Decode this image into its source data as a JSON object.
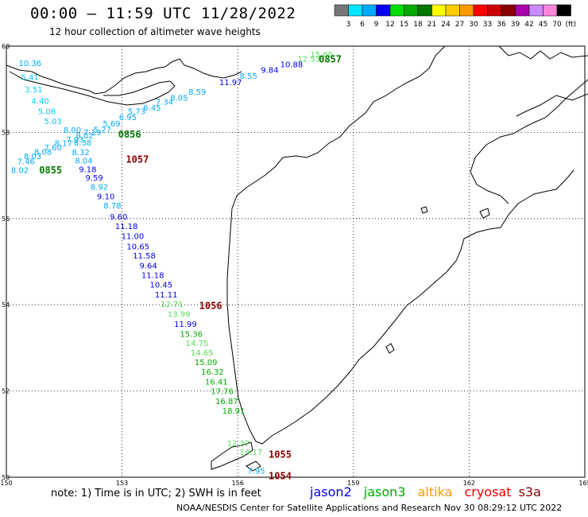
{
  "title": "00:00 – 11:59 UTC 11/28/2022",
  "subtitle": "12 hour collection of altimeter wave heights",
  "colorbar": {
    "colors": [
      "#777777",
      "#00e5ff",
      "#00aaff",
      "#0000ee",
      "#00dd00",
      "#00aa00",
      "#007700",
      "#ffff00",
      "#ffcc00",
      "#ff9900",
      "#ff0000",
      "#cc0000",
      "#880000",
      "#aa00aa",
      "#cc88ff",
      "#ff88dd",
      "#000000"
    ],
    "labels": [
      "3",
      "6",
      "9",
      "12",
      "15",
      "18",
      "21",
      "24",
      "27",
      "30",
      "33",
      "36",
      "39",
      "42",
      "45",
      "70"
    ],
    "unit": "(ft)"
  },
  "map": {
    "lon_range": [
      150,
      165
    ],
    "lat_range": [
      50,
      60
    ],
    "lon_ticks": [
      "150",
      "153",
      "156",
      "159",
      "162",
      "165"
    ],
    "lat_ticks": [
      "50",
      "52",
      "54",
      "56",
      "58",
      "60"
    ],
    "grid": "dotted"
  },
  "passes": [
    {
      "time": "0857",
      "color": "#007700",
      "lon": 158.1,
      "lat": 59.62
    },
    {
      "time": "0856",
      "color": "#007700",
      "lon": 152.9,
      "lat": 57.88
    },
    {
      "time": "0855",
      "color": "#007700",
      "lon": 150.85,
      "lat": 57.05
    },
    {
      "time": "1057",
      "color": "#880000",
      "lon": 153.1,
      "lat": 57.3
    },
    {
      "time": "1056",
      "color": "#880000",
      "lon": 155.0,
      "lat": 53.9
    },
    {
      "time": "1055",
      "color": "#880000",
      "lon": 156.8,
      "lat": 50.45
    },
    {
      "time": "1054",
      "color": "#880000",
      "lon": 156.8,
      "lat": 49.95
    }
  ],
  "heights": [
    {
      "value": "15.60",
      "color": "#55dd55",
      "lon": 157.88,
      "lat": 59.74
    },
    {
      "value": "12.53",
      "color": "#55dd55",
      "lon": 157.55,
      "lat": 59.64
    },
    {
      "value": "10.88",
      "color": "#0000ee",
      "lon": 157.1,
      "lat": 59.51
    },
    {
      "value": "9.84",
      "color": "#0000ee",
      "lon": 156.6,
      "lat": 59.38
    },
    {
      "value": "8.55",
      "color": "#00aaff",
      "lon": 156.05,
      "lat": 59.24
    },
    {
      "value": "11.97",
      "color": "#0000ee",
      "lon": 155.52,
      "lat": 59.1
    },
    {
      "value": "8.59",
      "color": "#00aaff",
      "lon": 154.72,
      "lat": 58.87
    },
    {
      "value": "8.05",
      "color": "#00aaff",
      "lon": 154.25,
      "lat": 58.74
    },
    {
      "value": "7.34",
      "color": "#00aaff",
      "lon": 153.87,
      "lat": 58.64
    },
    {
      "value": "6.45",
      "color": "#00aaff",
      "lon": 153.55,
      "lat": 58.51
    },
    {
      "value": "5.73",
      "color": "#00aaff",
      "lon": 153.15,
      "lat": 58.42
    },
    {
      "value": "6.95",
      "color": "#00aaff",
      "lon": 152.92,
      "lat": 58.28
    },
    {
      "value": "5.69",
      "color": "#00aaff",
      "lon": 152.5,
      "lat": 58.14
    },
    {
      "value": "5.27",
      "color": "#00aaff",
      "lon": 152.26,
      "lat": 58.0
    },
    {
      "value": "7.19",
      "color": "#00aaff",
      "lon": 152.0,
      "lat": 57.93
    },
    {
      "value": "8.00",
      "color": "#00aaff",
      "lon": 151.48,
      "lat": 57.99
    },
    {
      "value": "8.02",
      "color": "#00aaff",
      "lon": 151.8,
      "lat": 57.86
    },
    {
      "value": "7.93",
      "color": "#00aaff",
      "lon": 151.55,
      "lat": 57.77
    },
    {
      "value": "8.38",
      "color": "#00aaff",
      "lon": 151.75,
      "lat": 57.69
    },
    {
      "value": "8.17",
      "color": "#00aaff",
      "lon": 151.25,
      "lat": 57.68
    },
    {
      "value": "7.60",
      "color": "#00aaff",
      "lon": 150.98,
      "lat": 57.58
    },
    {
      "value": "8.32",
      "color": "#00aaff",
      "lon": 151.7,
      "lat": 57.47
    },
    {
      "value": "8.08",
      "color": "#00aaff",
      "lon": 150.72,
      "lat": 57.48
    },
    {
      "value": "8.03",
      "color": "#00aaff",
      "lon": 150.45,
      "lat": 57.38
    },
    {
      "value": "8.04",
      "color": "#00aaff",
      "lon": 151.78,
      "lat": 57.28
    },
    {
      "value": "7.46",
      "color": "#00aaff",
      "lon": 150.28,
      "lat": 57.26
    },
    {
      "value": "8.02",
      "color": "#00aaff",
      "lon": 150.12,
      "lat": 57.06
    },
    {
      "value": "9.18",
      "color": "#0000ee",
      "lon": 151.88,
      "lat": 57.08
    },
    {
      "value": "9.59",
      "color": "#0000ee",
      "lon": 152.05,
      "lat": 56.88
    },
    {
      "value": "8.92",
      "color": "#00aaff",
      "lon": 152.18,
      "lat": 56.67
    },
    {
      "value": "9.10",
      "color": "#0000ee",
      "lon": 152.35,
      "lat": 56.45
    },
    {
      "value": "8.78",
      "color": "#00aaff",
      "lon": 152.52,
      "lat": 56.24
    },
    {
      "value": "9.60",
      "color": "#0000ee",
      "lon": 152.68,
      "lat": 55.98
    },
    {
      "value": "11.18",
      "color": "#0000ee",
      "lon": 152.82,
      "lat": 55.76
    },
    {
      "value": "11.00",
      "color": "#0000ee",
      "lon": 152.98,
      "lat": 55.53
    },
    {
      "value": "10.65",
      "color": "#0000ee",
      "lon": 153.12,
      "lat": 55.29
    },
    {
      "value": "11.58",
      "color": "#0000ee",
      "lon": 153.28,
      "lat": 55.07
    },
    {
      "value": "9.64",
      "color": "#0000ee",
      "lon": 153.45,
      "lat": 54.84
    },
    {
      "value": "11.18",
      "color": "#0000ee",
      "lon": 153.5,
      "lat": 54.62
    },
    {
      "value": "10.45",
      "color": "#0000ee",
      "lon": 153.72,
      "lat": 54.4
    },
    {
      "value": "11.11",
      "color": "#0000ee",
      "lon": 153.85,
      "lat": 54.17
    },
    {
      "value": "12.71",
      "color": "#55dd55",
      "lon": 154.0,
      "lat": 53.95
    },
    {
      "value": "13.99",
      "color": "#55dd55",
      "lon": 154.18,
      "lat": 53.72
    },
    {
      "value": "11.99",
      "color": "#0000ee",
      "lon": 154.35,
      "lat": 53.49
    },
    {
      "value": "15.36",
      "color": "#00aa00",
      "lon": 154.5,
      "lat": 53.26
    },
    {
      "value": "14.75",
      "color": "#55dd55",
      "lon": 154.65,
      "lat": 53.04
    },
    {
      "value": "14.65",
      "color": "#55dd55",
      "lon": 154.78,
      "lat": 52.82
    },
    {
      "value": "15.09",
      "color": "#00aa00",
      "lon": 154.88,
      "lat": 52.6
    },
    {
      "value": "16.32",
      "color": "#00aa00",
      "lon": 155.05,
      "lat": 52.38
    },
    {
      "value": "16.41",
      "color": "#00aa00",
      "lon": 155.15,
      "lat": 52.15
    },
    {
      "value": "17.76",
      "color": "#00aa00",
      "lon": 155.3,
      "lat": 51.93
    },
    {
      "value": "16.87",
      "color": "#00aa00",
      "lon": 155.42,
      "lat": 51.7
    },
    {
      "value": "18.91",
      "color": "#00aa00",
      "lon": 155.6,
      "lat": 51.48
    },
    {
      "value": "12.37",
      "color": "#55dd55",
      "lon": 155.72,
      "lat": 50.72
    },
    {
      "value": "14.17",
      "color": "#55dd55",
      "lon": 156.05,
      "lat": 50.52
    },
    {
      "value": "10.36",
      "color": "#00aaff",
      "lon": 150.32,
      "lat": 59.54
    },
    {
      "value": "5.41",
      "color": "#00ccff",
      "lon": 150.38,
      "lat": 59.22
    },
    {
      "value": "3.51",
      "color": "#00ccff",
      "lon": 150.48,
      "lat": 58.93
    },
    {
      "value": "4.40",
      "color": "#00ccff",
      "lon": 150.65,
      "lat": 58.66
    },
    {
      "value": "5.06",
      "color": "#00ccff",
      "lon": 150.82,
      "lat": 58.42
    },
    {
      "value": "5.03",
      "color": "#00ccff",
      "lon": 150.98,
      "lat": 58.19
    },
    {
      "value": "7.95",
      "color": "#00aaff",
      "lon": 156.25,
      "lat": 50.08
    }
  ],
  "note": "note:  1) Time is in UTC;  2) SWH is in feet",
  "satellites": [
    {
      "name": "jason2",
      "color": "#0000ee"
    },
    {
      "name": "jason3",
      "color": "#00aa00"
    },
    {
      "name": "altika",
      "color": "#ff9900"
    },
    {
      "name": "cryosat",
      "color": "#ee0000"
    },
    {
      "name": "s3a",
      "color": "#880000"
    }
  ],
  "credit": "NOAA/NESDIS Center for Satellite Applications and Research    Nov 30 08:29:12 UTC 2022"
}
